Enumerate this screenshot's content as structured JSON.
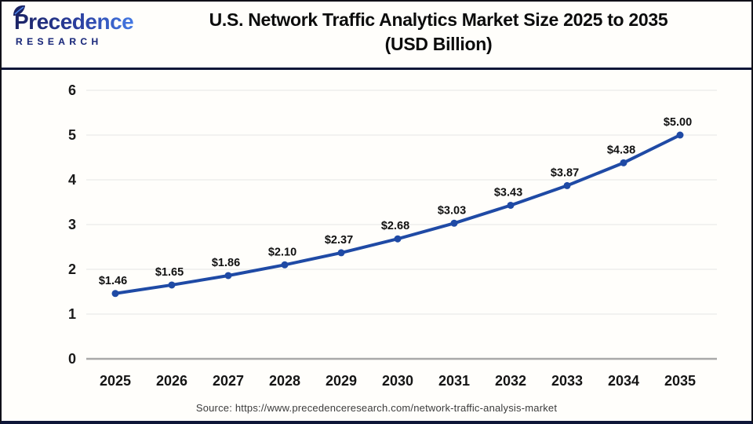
{
  "header": {
    "logo": {
      "brand": "Precedence",
      "sub": "RESEARCH"
    },
    "title_line1": "U.S. Network Traffic Analytics Market Size 2025 to 2035",
    "title_line2": "(USD Billion)"
  },
  "footer": {
    "source": "Source: https://www.precedenceresearch.com/network-traffic-analysis-market"
  },
  "colors": {
    "line": "#1f4aa5",
    "divider_navy": "#0e1638",
    "grid": "#eaeaea",
    "zero_axis": "#a9a9a9",
    "label_text": "#111111"
  },
  "chart_data": {
    "type": "line",
    "title": "U.S. Network Traffic Analytics Market Size 2025 to 2035 (USD Billion)",
    "categories": [
      "2025",
      "2026",
      "2027",
      "2028",
      "2029",
      "2030",
      "2031",
      "2032",
      "2033",
      "2034",
      "2035"
    ],
    "values": [
      1.46,
      1.65,
      1.86,
      2.1,
      2.37,
      2.68,
      3.03,
      3.43,
      3.87,
      4.38,
      5.0
    ],
    "labels": [
      "$1.46",
      "$1.65",
      "$1.86",
      "$2.10",
      "$2.37",
      "$2.68",
      "$3.03",
      "$3.43",
      "$3.87",
      "$4.38",
      "$5.00"
    ],
    "xlabel": "",
    "ylabel": "",
    "ylim": [
      0,
      6
    ],
    "yticks": [
      0,
      1,
      2,
      3,
      4,
      5,
      6
    ],
    "grid": true,
    "legend": "none",
    "line_color": "#1f4aa5",
    "marker": "circle"
  }
}
